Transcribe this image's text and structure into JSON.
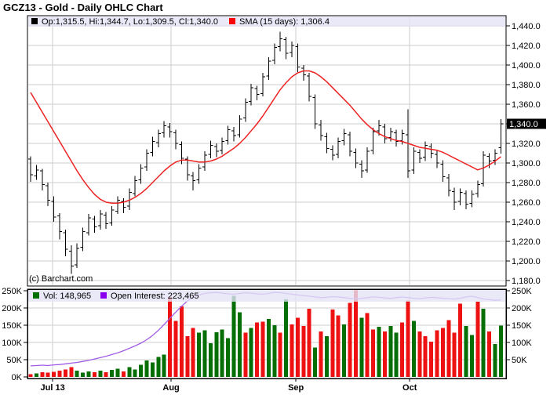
{
  "header": {
    "title": "GCZ13 - Gold - Daily OHLC Chart"
  },
  "watermark": "(c) Barchart.com",
  "main_legend": {
    "ohlc_swatch": "black-square",
    "ohlc_label": "Op:1,315.5, Hi:1,344.7, Lo:1,309.5, Cl:1,340.0",
    "sma_swatch": "red-square",
    "sma_label": "SMA (15 days): 1,306.4"
  },
  "volume_legend": {
    "vol_swatch": "green-square",
    "vol_label": "Vol: 148,965",
    "oi_swatch": "purple-square",
    "oi_label": "Open Interest: 223,465"
  },
  "last_price_tag": "1,340.0",
  "colors": {
    "bar": "#000000",
    "sma_line": "#ee2222",
    "vol_up": "#056f05",
    "vol_down": "#ee1111",
    "oi_line": "#a05ce6",
    "grid": "#cccccc",
    "legend_strip": "#e4e4f6",
    "axis": "#000000",
    "tag_bg": "#000000",
    "tag_text": "#ffffff"
  },
  "chart_data": [
    {
      "type": "ohlc",
      "title": "GCZ13 - Gold - Daily OHLC Chart",
      "ylabel_side": "right",
      "ylim": [
        1180,
        1440
      ],
      "ytick_values": [
        1440,
        1420,
        1400,
        1380,
        1360,
        1340,
        1320,
        1300,
        1280,
        1260,
        1240,
        1220,
        1200,
        1180
      ],
      "ytick_labels": [
        "1,440.0",
        "1,420.0",
        "1,400.0",
        "1,380.0",
        "1,360.0",
        "1,340.0",
        "1,320.0",
        "1,300.0",
        "1,280.0",
        "1,260.0",
        "1,240.0",
        "1,220.0",
        "1,200.0",
        "1,180.0"
      ],
      "x_month_ticks": [
        {
          "label": "Jul 13",
          "index": 3.8
        },
        {
          "label": "Aug",
          "index": 24.2
        },
        {
          "label": "Sep",
          "index": 45.7
        },
        {
          "label": "Oct",
          "index": 65.3
        }
      ],
      "last_close": 1340.0,
      "ohlc": [
        [
          1304,
          1307,
          1281,
          1288
        ],
        [
          1287,
          1298,
          1283,
          1293
        ],
        [
          1292,
          1294,
          1272,
          1278
        ],
        [
          1277,
          1280,
          1256,
          1262
        ],
        [
          1261,
          1266,
          1240,
          1245
        ],
        [
          1246,
          1249,
          1222,
          1230
        ],
        [
          1229,
          1232,
          1205,
          1212
        ],
        [
          1210,
          1216,
          1187,
          1195
        ],
        [
          1196,
          1218,
          1193,
          1213
        ],
        [
          1214,
          1234,
          1210,
          1230
        ],
        [
          1229,
          1248,
          1226,
          1244
        ],
        [
          1243,
          1246,
          1229,
          1235
        ],
        [
          1236,
          1252,
          1232,
          1248
        ],
        [
          1247,
          1250,
          1233,
          1238
        ],
        [
          1239,
          1256,
          1236,
          1252
        ],
        [
          1251,
          1266,
          1248,
          1262
        ],
        [
          1261,
          1264,
          1249,
          1255
        ],
        [
          1256,
          1274,
          1252,
          1270
        ],
        [
          1269,
          1287,
          1266,
          1282
        ],
        [
          1283,
          1299,
          1279,
          1295
        ],
        [
          1296,
          1314,
          1292,
          1310
        ],
        [
          1311,
          1327,
          1307,
          1322
        ],
        [
          1321,
          1334,
          1316,
          1330
        ],
        [
          1331,
          1343,
          1326,
          1338
        ],
        [
          1337,
          1341,
          1326,
          1332
        ],
        [
          1331,
          1334,
          1314,
          1320
        ],
        [
          1319,
          1322,
          1299,
          1305
        ],
        [
          1304,
          1307,
          1282,
          1288
        ],
        [
          1287,
          1291,
          1272,
          1282
        ],
        [
          1283,
          1299,
          1279,
          1295
        ],
        [
          1296,
          1312,
          1292,
          1308
        ],
        [
          1309,
          1323,
          1305,
          1318
        ],
        [
          1317,
          1320,
          1306,
          1312
        ],
        [
          1313,
          1326,
          1309,
          1322
        ],
        [
          1323,
          1338,
          1319,
          1334
        ],
        [
          1333,
          1337,
          1322,
          1328
        ],
        [
          1329,
          1349,
          1326,
          1345
        ],
        [
          1346,
          1366,
          1342,
          1362
        ],
        [
          1363,
          1381,
          1359,
          1377
        ],
        [
          1376,
          1379,
          1364,
          1370
        ],
        [
          1371,
          1392,
          1368,
          1388
        ],
        [
          1389,
          1408,
          1385,
          1404
        ],
        [
          1405,
          1422,
          1401,
          1418
        ],
        [
          1419,
          1434,
          1414,
          1427
        ],
        [
          1426,
          1429,
          1406,
          1412
        ],
        [
          1413,
          1424,
          1408,
          1420
        ],
        [
          1419,
          1422,
          1393,
          1398
        ],
        [
          1397,
          1400,
          1384,
          1390
        ],
        [
          1389,
          1392,
          1363,
          1368
        ],
        [
          1367,
          1370,
          1335,
          1340
        ],
        [
          1339,
          1344,
          1323,
          1328
        ],
        [
          1327,
          1331,
          1310,
          1315
        ],
        [
          1314,
          1318,
          1303,
          1308
        ],
        [
          1309,
          1326,
          1305,
          1322
        ],
        [
          1323,
          1335,
          1318,
          1330
        ],
        [
          1329,
          1332,
          1307,
          1312
        ],
        [
          1311,
          1315,
          1295,
          1300
        ],
        [
          1299,
          1303,
          1285,
          1292
        ],
        [
          1293,
          1316,
          1290,
          1312
        ],
        [
          1313,
          1336,
          1309,
          1332
        ],
        [
          1333,
          1344,
          1328,
          1338
        ],
        [
          1337,
          1340,
          1320,
          1325
        ],
        [
          1326,
          1336,
          1322,
          1332
        ],
        [
          1331,
          1334,
          1317,
          1322
        ],
        [
          1323,
          1334,
          1319,
          1330
        ],
        [
          1329,
          1355,
          1285,
          1292
        ],
        [
          1293,
          1316,
          1289,
          1312
        ],
        [
          1311,
          1314,
          1300,
          1305
        ],
        [
          1306,
          1322,
          1302,
          1318
        ],
        [
          1317,
          1320,
          1305,
          1310
        ],
        [
          1309,
          1313,
          1295,
          1300
        ],
        [
          1299,
          1303,
          1281,
          1286
        ],
        [
          1285,
          1289,
          1266,
          1272
        ],
        [
          1271,
          1275,
          1252,
          1260
        ],
        [
          1261,
          1274,
          1257,
          1270
        ],
        [
          1269,
          1272,
          1253,
          1258
        ],
        [
          1259,
          1272,
          1255,
          1268
        ],
        [
          1269,
          1282,
          1265,
          1278
        ],
        [
          1279,
          1312,
          1276,
          1308
        ],
        [
          1307,
          1310,
          1295,
          1302
        ],
        [
          1303,
          1314,
          1298,
          1310
        ],
        [
          1315.5,
          1344.7,
          1309.5,
          1340.0
        ]
      ],
      "sma15": [
        1372,
        1362,
        1352,
        1342,
        1332,
        1322,
        1312,
        1302,
        1292,
        1283,
        1275,
        1268,
        1263,
        1260,
        1259,
        1259,
        1260,
        1262,
        1265,
        1269,
        1274,
        1280,
        1286,
        1292,
        1297,
        1301,
        1303,
        1303,
        1302,
        1301,
        1301,
        1302,
        1304,
        1307,
        1311,
        1315,
        1320,
        1326,
        1333,
        1340,
        1348,
        1357,
        1366,
        1375,
        1382,
        1388,
        1392,
        1394,
        1394,
        1392,
        1388,
        1383,
        1377,
        1371,
        1365,
        1359,
        1352,
        1345,
        1339,
        1334,
        1330,
        1327,
        1325,
        1323,
        1322,
        1320,
        1318,
        1316,
        1315,
        1314,
        1313,
        1311,
        1308,
        1305,
        1302,
        1299,
        1296,
        1293,
        1295,
        1298,
        1302,
        1306.4
      ]
    },
    {
      "type": "bar",
      "name": "volume-and-open-interest",
      "ylim": [
        0,
        250
      ],
      "yunit": "K",
      "ytick_labels_left": [
        "250K",
        "200K",
        "150K",
        "100K",
        "50K",
        "0K"
      ],
      "ytick_labels_right": [
        "250K",
        "200K",
        "150K",
        "100K",
        "50K"
      ],
      "ytick_values": [
        250,
        200,
        150,
        100,
        50,
        0
      ],
      "values": [
        8,
        10,
        14,
        12,
        15,
        18,
        22,
        28,
        18,
        12,
        16,
        14,
        18,
        14,
        20,
        24,
        16,
        28,
        22,
        35,
        48,
        42,
        58,
        65,
        232,
        162,
        205,
        118,
        142,
        128,
        135,
        98,
        130,
        138,
        112,
        235,
        188,
        128,
        142,
        158,
        160,
        168,
        150,
        128,
        225,
        152,
        172,
        148,
        198,
        85,
        132,
        118,
        195,
        178,
        152,
        215,
        252,
        172,
        185,
        138,
        145,
        132,
        148,
        128,
        158,
        222,
        162,
        132,
        118,
        102,
        135,
        142,
        165,
        128,
        212,
        148,
        122,
        218,
        198,
        132,
        95,
        149
      ],
      "bar_colors": "rgrrrrrrgggrgrggrgggggggrrrrrggggggggrgrrggrgrrrrgrgrrgrrgrrgrggrrgrrrrrrrrggrgrgg",
      "open_interest": [
        32,
        33,
        34,
        33,
        35,
        36,
        38,
        40,
        42,
        45,
        48,
        52,
        56,
        60,
        65,
        70,
        76,
        83,
        90,
        98,
        108,
        120,
        135,
        152,
        170,
        188,
        205,
        220,
        232,
        238,
        242,
        244,
        245,
        243,
        241,
        240,
        242,
        244,
        243,
        241,
        240,
        242,
        245,
        244,
        242,
        240,
        238,
        236,
        234,
        232,
        230,
        231,
        233,
        232,
        230,
        228,
        227,
        228,
        230,
        232,
        231,
        229,
        228,
        230,
        232,
        230,
        228,
        227,
        229,
        231,
        230,
        228,
        227,
        226,
        228,
        232,
        234,
        230,
        226,
        224,
        222,
        223.5
      ]
    }
  ]
}
